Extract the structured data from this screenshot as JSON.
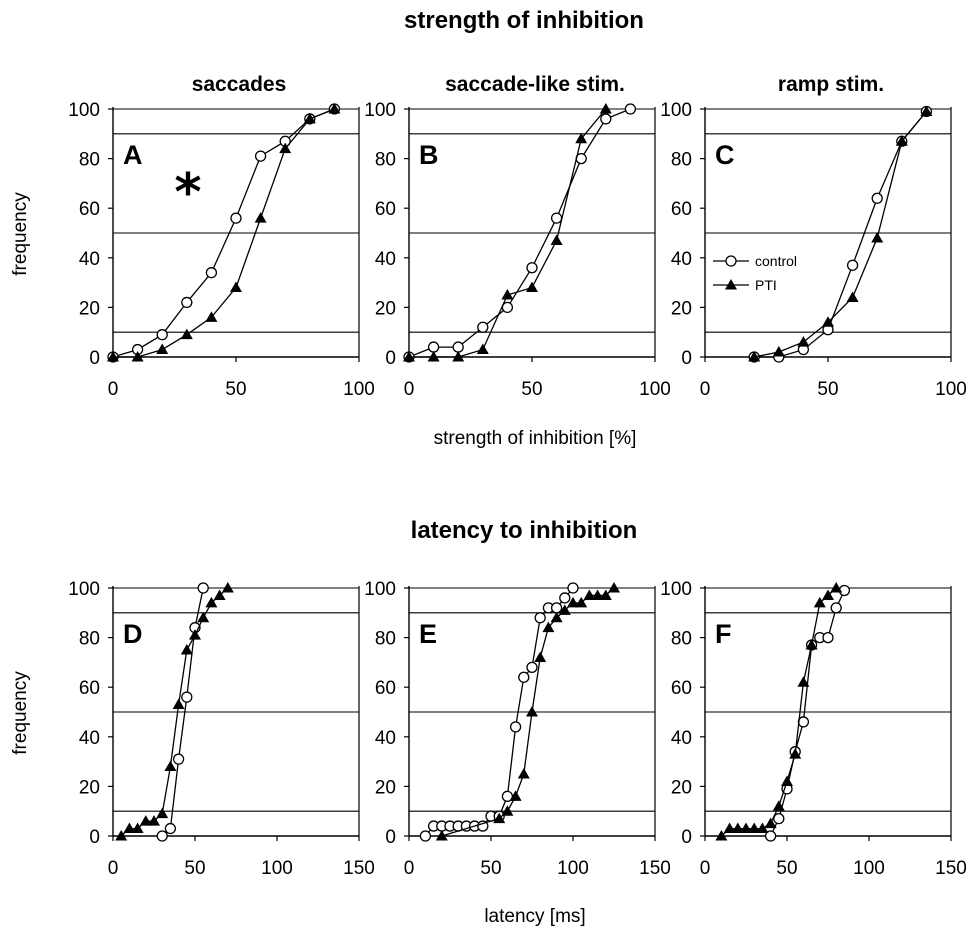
{
  "figure": {
    "section_titles": [
      "strength of inhibition",
      "latency to inhibition"
    ],
    "column_titles": [
      "saccades",
      "saccade-like stim.",
      "ramp stim."
    ],
    "ylabel": "frequency",
    "xlabels": [
      "strength of inhibition [%]",
      "latency [ms]"
    ],
    "significance_marker": "*"
  },
  "chart_data": [
    {
      "type": "line",
      "panel_label": "A",
      "section": "strength of inhibition",
      "column": "saccades",
      "xlim": [
        0,
        100
      ],
      "ylim": [
        0,
        100
      ],
      "xticks": [
        "0",
        "50",
        "100"
      ],
      "yticks": [
        "0",
        "20",
        "40",
        "60",
        "80",
        "100"
      ],
      "reference_lines": [
        10,
        50,
        90,
        100
      ],
      "series": [
        {
          "name": "control",
          "marker": "open-circle",
          "x": [
            0,
            10,
            20,
            30,
            40,
            50,
            60,
            70,
            80,
            90
          ],
          "y": [
            0,
            3,
            9,
            22,
            34,
            56,
            81,
            87,
            96,
            100
          ]
        },
        {
          "name": "PTI",
          "marker": "filled-triangle",
          "x": [
            0,
            10,
            20,
            30,
            40,
            50,
            60,
            70,
            80,
            90
          ],
          "y": [
            0,
            0,
            3,
            9,
            16,
            28,
            56,
            84,
            96,
            100
          ]
        }
      ],
      "annotation": "*"
    },
    {
      "type": "line",
      "panel_label": "B",
      "section": "strength of inhibition",
      "column": "saccade-like stim.",
      "xlim": [
        0,
        100
      ],
      "ylim": [
        0,
        100
      ],
      "xticks": [
        "0",
        "50",
        "100"
      ],
      "yticks": [
        "0",
        "20",
        "40",
        "60",
        "80",
        "100"
      ],
      "reference_lines": [
        10,
        50,
        90,
        100
      ],
      "series": [
        {
          "name": "control",
          "marker": "open-circle",
          "x": [
            0,
            10,
            20,
            30,
            40,
            50,
            60,
            70,
            80,
            90
          ],
          "y": [
            0,
            4,
            4,
            12,
            20,
            36,
            56,
            80,
            96,
            100
          ]
        },
        {
          "name": "PTI",
          "marker": "filled-triangle",
          "x": [
            0,
            10,
            20,
            30,
            40,
            50,
            60,
            70,
            80
          ],
          "y": [
            0,
            0,
            0,
            3,
            25,
            28,
            47,
            88,
            100
          ]
        }
      ]
    },
    {
      "type": "line",
      "panel_label": "C",
      "section": "strength of inhibition",
      "column": "ramp stim.",
      "xlim": [
        0,
        100
      ],
      "ylim": [
        0,
        100
      ],
      "xticks": [
        "0",
        "50",
        "100"
      ],
      "yticks": [
        "0",
        "20",
        "40",
        "60",
        "80",
        "100"
      ],
      "reference_lines": [
        10,
        50,
        90,
        100
      ],
      "legend": {
        "position": "middle-left",
        "entries": [
          "control",
          "PTI"
        ]
      },
      "series": [
        {
          "name": "control",
          "marker": "open-circle",
          "x": [
            20,
            30,
            40,
            50,
            60,
            70,
            80,
            90
          ],
          "y": [
            0,
            0,
            3,
            11,
            37,
            64,
            87,
            99
          ]
        },
        {
          "name": "PTI",
          "marker": "filled-triangle",
          "x": [
            20,
            30,
            40,
            50,
            60,
            70,
            80,
            90
          ],
          "y": [
            0,
            2,
            6,
            14,
            24,
            48,
            87,
            99
          ]
        }
      ]
    },
    {
      "type": "line",
      "panel_label": "D",
      "section": "latency to inhibition",
      "column": "saccades",
      "xlim": [
        0,
        150
      ],
      "ylim": [
        0,
        100
      ],
      "xticks": [
        "0",
        "50",
        "100",
        "150"
      ],
      "yticks": [
        "0",
        "20",
        "40",
        "60",
        "80",
        "100"
      ],
      "reference_lines": [
        10,
        50,
        90,
        100
      ],
      "series": [
        {
          "name": "control",
          "marker": "open-circle",
          "x": [
            30,
            35,
            40,
            45,
            50,
            55
          ],
          "y": [
            0,
            3,
            31,
            56,
            84,
            100
          ]
        },
        {
          "name": "PTI",
          "marker": "filled-triangle",
          "x": [
            5,
            10,
            15,
            20,
            25,
            30,
            35,
            40,
            45,
            50,
            55,
            60,
            65,
            70
          ],
          "y": [
            0,
            3,
            3,
            6,
            6,
            9,
            28,
            53,
            75,
            81,
            88,
            94,
            97,
            100
          ]
        }
      ]
    },
    {
      "type": "line",
      "panel_label": "E",
      "section": "latency to inhibition",
      "column": "saccade-like stim.",
      "xlim": [
        0,
        150
      ],
      "ylim": [
        0,
        100
      ],
      "xticks": [
        "0",
        "50",
        "100",
        "150"
      ],
      "yticks": [
        "0",
        "20",
        "40",
        "60",
        "80",
        "100"
      ],
      "reference_lines": [
        10,
        50,
        90,
        100
      ],
      "series": [
        {
          "name": "control",
          "marker": "open-circle",
          "x": [
            10,
            15,
            20,
            25,
            30,
            35,
            40,
            45,
            50,
            55,
            60,
            65,
            70,
            75,
            80,
            85,
            90,
            95,
            100
          ],
          "y": [
            0,
            4,
            4,
            4,
            4,
            4,
            4,
            4,
            8,
            8,
            16,
            44,
            64,
            68,
            88,
            92,
            92,
            96,
            100
          ]
        },
        {
          "name": "PTI",
          "marker": "filled-triangle",
          "x": [
            20,
            55,
            60,
            65,
            70,
            75,
            80,
            85,
            90,
            95,
            100,
            105,
            110,
            115,
            120,
            125
          ],
          "y": [
            0,
            7,
            10,
            16,
            25,
            50,
            72,
            84,
            88,
            91,
            94,
            94,
            97,
            97,
            97,
            100
          ]
        }
      ]
    },
    {
      "type": "line",
      "panel_label": "F",
      "section": "latency to inhibition",
      "column": "ramp stim.",
      "xlim": [
        0,
        150
      ],
      "ylim": [
        0,
        100
      ],
      "xticks": [
        "0",
        "50",
        "100",
        "150"
      ],
      "yticks": [
        "0",
        "20",
        "40",
        "60",
        "80",
        "100"
      ],
      "reference_lines": [
        10,
        50,
        90,
        100
      ],
      "series": [
        {
          "name": "control",
          "marker": "open-circle",
          "x": [
            40,
            45,
            50,
            55,
            60,
            65,
            70,
            75,
            80,
            85
          ],
          "y": [
            0,
            7,
            19,
            34,
            46,
            77,
            80,
            80,
            92,
            99
          ]
        },
        {
          "name": "PTI",
          "marker": "filled-triangle",
          "x": [
            10,
            15,
            20,
            25,
            30,
            35,
            40,
            45,
            50,
            55,
            60,
            65,
            70,
            75,
            80
          ],
          "y": [
            0,
            3,
            3,
            3,
            3,
            3,
            5,
            12,
            22,
            33,
            62,
            77,
            94,
            97,
            100
          ]
        }
      ]
    }
  ]
}
